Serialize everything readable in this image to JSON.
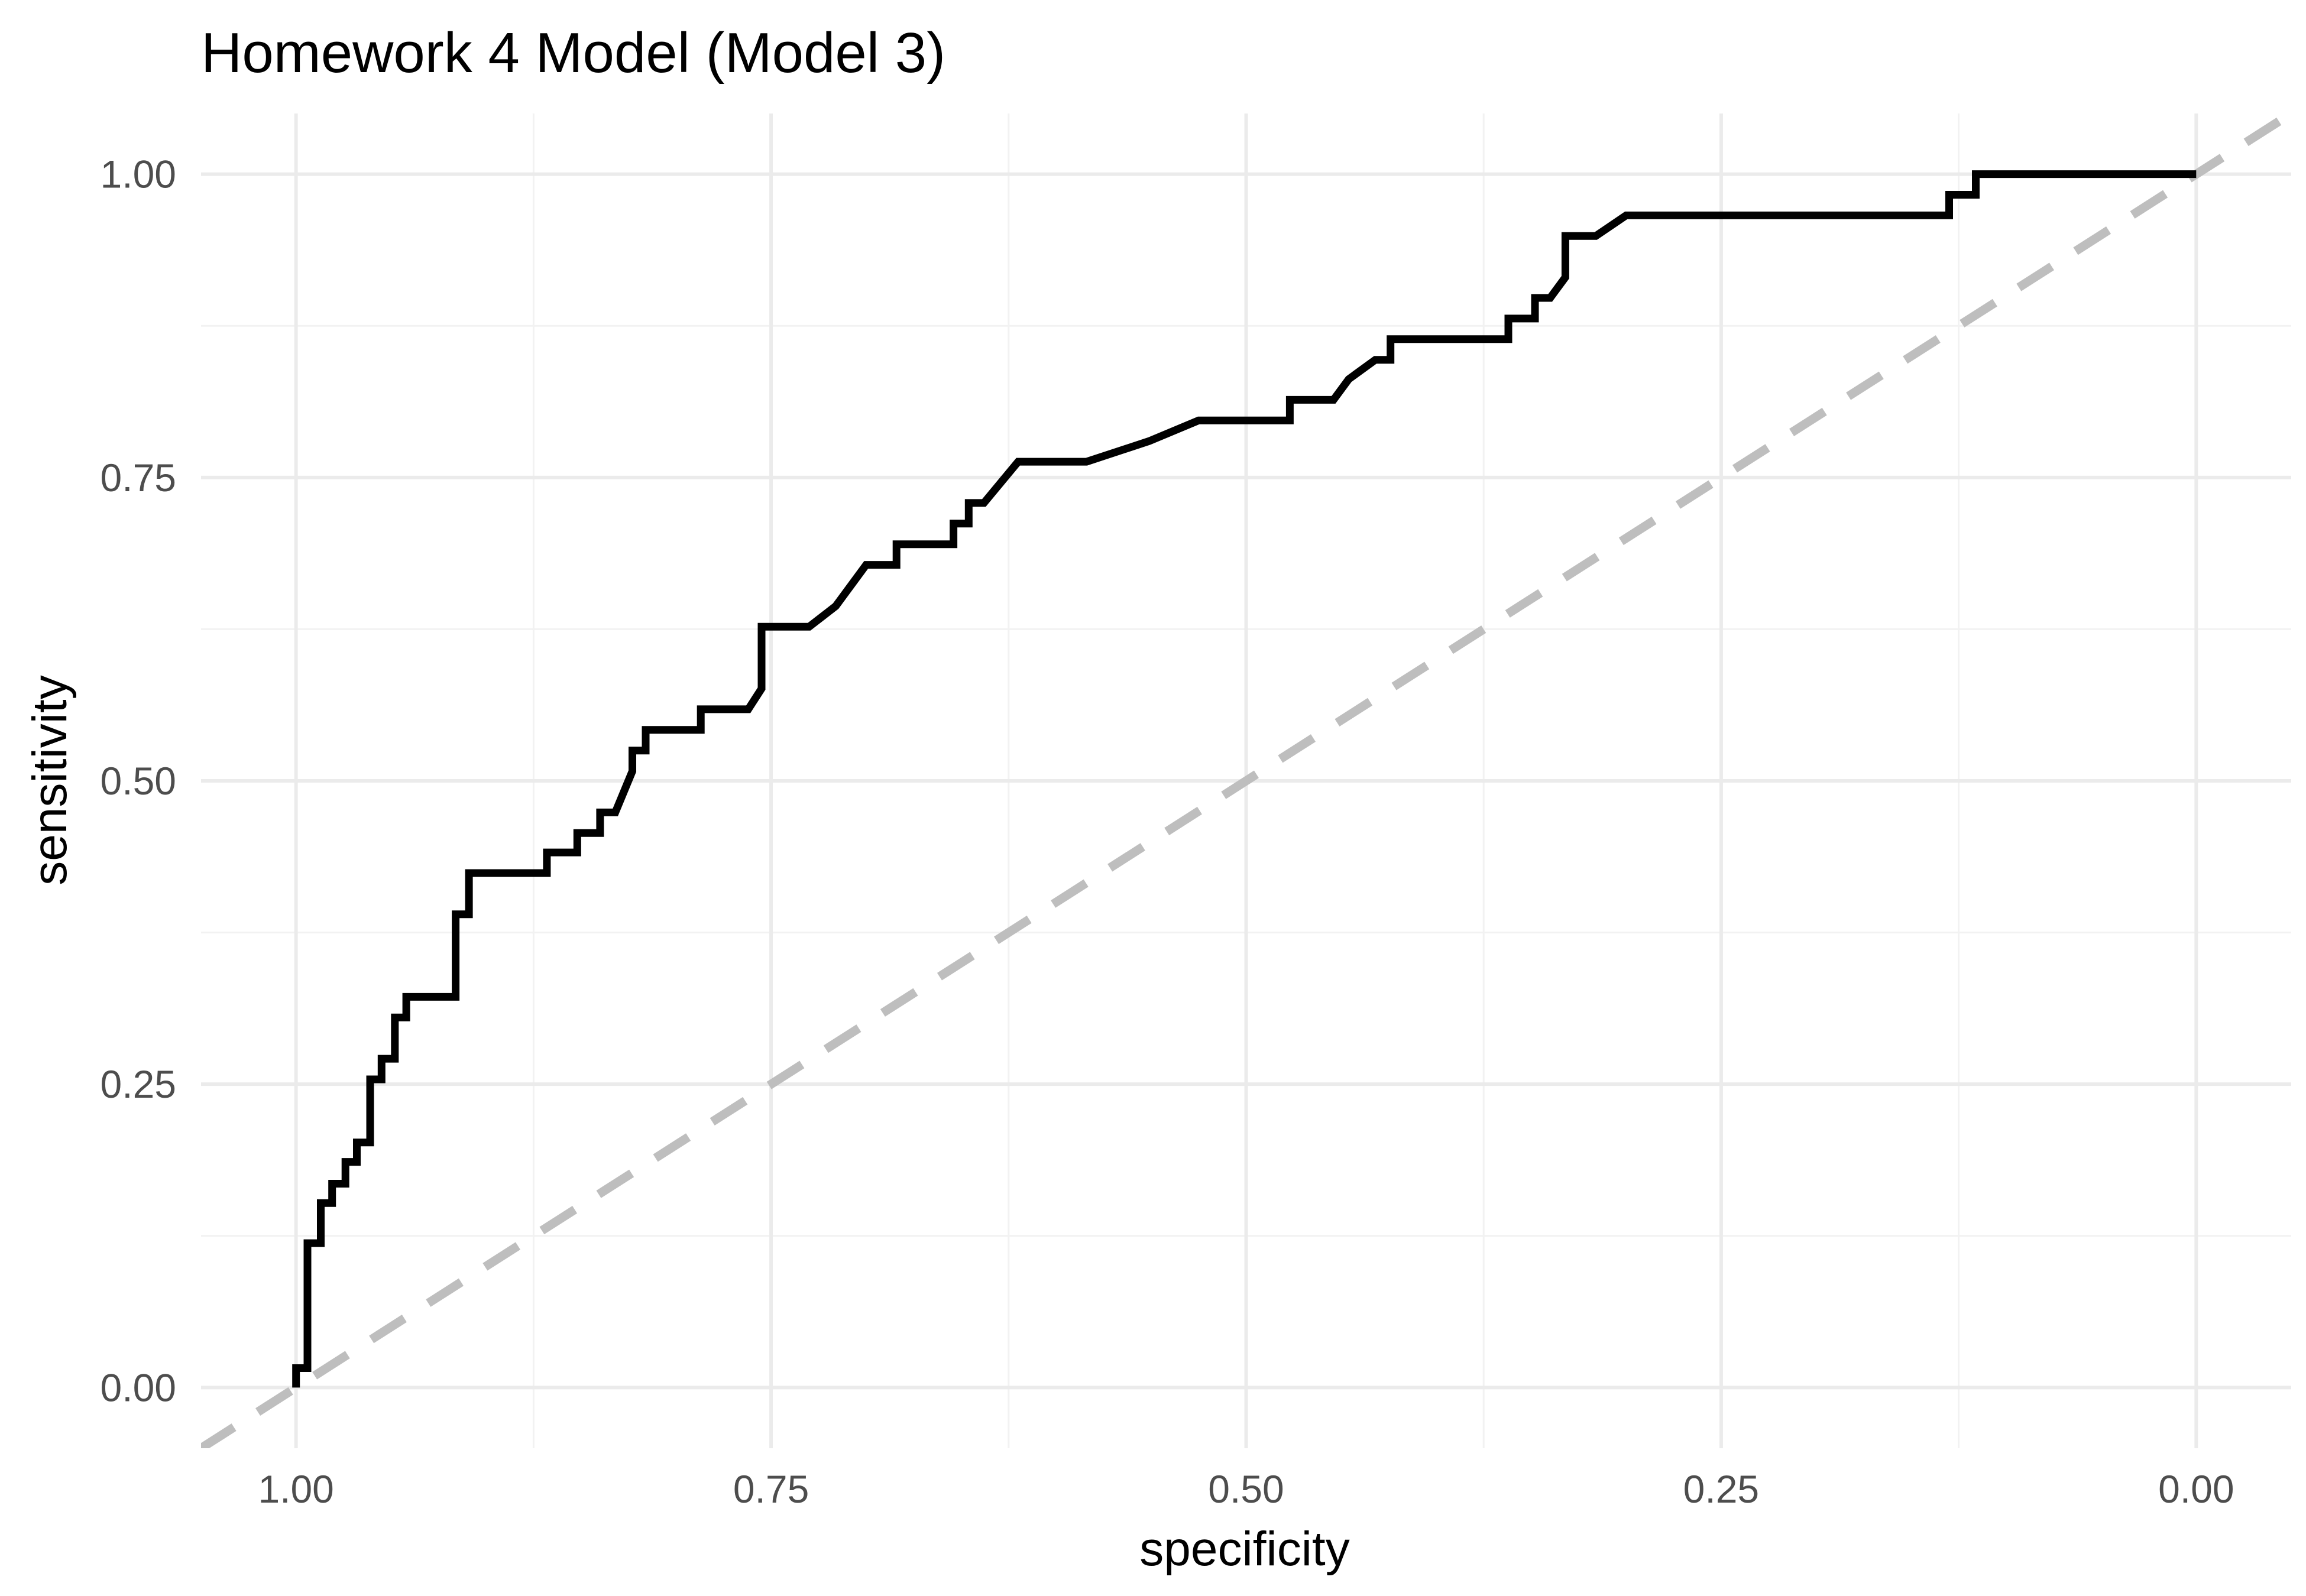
{
  "chart_data": {
    "type": "line",
    "title": "Homework 4 Model (Model 3)",
    "xlabel": "specificity",
    "ylabel": "sensitivity",
    "x_reversed": true,
    "xlim": [
      1.05,
      -0.05
    ],
    "ylim": [
      -0.05,
      1.05
    ],
    "x_ticks": [
      1.0,
      0.75,
      0.5,
      0.25,
      0.0
    ],
    "x_tick_labels": [
      "1.00",
      "0.75",
      "0.50",
      "0.25",
      "0.00"
    ],
    "y_ticks": [
      0.0,
      0.25,
      0.5,
      0.75,
      1.0
    ],
    "y_tick_labels": [
      "0.00",
      "0.25",
      "0.50",
      "0.75",
      "1.00"
    ],
    "grid": true,
    "legend": "none",
    "colors": {
      "roc_line": "#000000",
      "reference_line": "#bebebe",
      "grid_major": "#ebebeb",
      "grid_minor": "#f2f2f2",
      "tick_text": "#4d4d4d"
    },
    "series": [
      {
        "points": [
          [
            1.0,
            0.0
          ],
          [
            1.0,
            0.016
          ],
          [
            0.994,
            0.016
          ],
          [
            0.994,
            0.119
          ],
          [
            0.987,
            0.119
          ],
          [
            0.987,
            0.152
          ],
          [
            0.981,
            0.152
          ],
          [
            0.981,
            0.168
          ],
          [
            0.974,
            0.168
          ],
          [
            0.974,
            0.186
          ],
          [
            0.968,
            0.186
          ],
          [
            0.968,
            0.202
          ],
          [
            0.961,
            0.202
          ],
          [
            0.961,
            0.254
          ],
          [
            0.955,
            0.254
          ],
          [
            0.955,
            0.271
          ],
          [
            0.948,
            0.271
          ],
          [
            0.948,
            0.305
          ],
          [
            0.942,
            0.305
          ],
          [
            0.942,
            0.322
          ],
          [
            0.916,
            0.322
          ],
          [
            0.916,
            0.39
          ],
          [
            0.909,
            0.39
          ],
          [
            0.909,
            0.424
          ],
          [
            0.868,
            0.424
          ],
          [
            0.868,
            0.441
          ],
          [
            0.852,
            0.441
          ],
          [
            0.852,
            0.457
          ],
          [
            0.84,
            0.457
          ],
          [
            0.84,
            0.474
          ],
          [
            0.832,
            0.474
          ],
          [
            0.823,
            0.508
          ],
          [
            0.823,
            0.525
          ],
          [
            0.816,
            0.525
          ],
          [
            0.816,
            0.542
          ],
          [
            0.787,
            0.542
          ],
          [
            0.787,
            0.559
          ],
          [
            0.762,
            0.559
          ],
          [
            0.755,
            0.576
          ],
          [
            0.755,
            0.627
          ],
          [
            0.73,
            0.627
          ],
          [
            0.716,
            0.644
          ],
          [
            0.7,
            0.678
          ],
          [
            0.684,
            0.678
          ],
          [
            0.684,
            0.695
          ],
          [
            0.654,
            0.695
          ],
          [
            0.654,
            0.712
          ],
          [
            0.646,
            0.712
          ],
          [
            0.646,
            0.729
          ],
          [
            0.638,
            0.729
          ],
          [
            0.62,
            0.763
          ],
          [
            0.584,
            0.763
          ],
          [
            0.551,
            0.78
          ],
          [
            0.525,
            0.797
          ],
          [
            0.477,
            0.797
          ],
          [
            0.477,
            0.814
          ],
          [
            0.454,
            0.814
          ],
          [
            0.446,
            0.831
          ],
          [
            0.432,
            0.847
          ],
          [
            0.424,
            0.847
          ],
          [
            0.424,
            0.864
          ],
          [
            0.362,
            0.864
          ],
          [
            0.362,
            0.881
          ],
          [
            0.348,
            0.881
          ],
          [
            0.348,
            0.898
          ],
          [
            0.34,
            0.898
          ],
          [
            0.332,
            0.915
          ],
          [
            0.332,
            0.949
          ],
          [
            0.316,
            0.949
          ],
          [
            0.3,
            0.966
          ],
          [
            0.13,
            0.966
          ],
          [
            0.13,
            0.983
          ],
          [
            0.116,
            0.983
          ],
          [
            0.116,
            1.0
          ],
          [
            0.0,
            1.0
          ]
        ]
      },
      {
        "points": [
          [
            1.05,
            -0.05
          ],
          [
            -0.05,
            1.05
          ]
        ]
      }
    ]
  }
}
